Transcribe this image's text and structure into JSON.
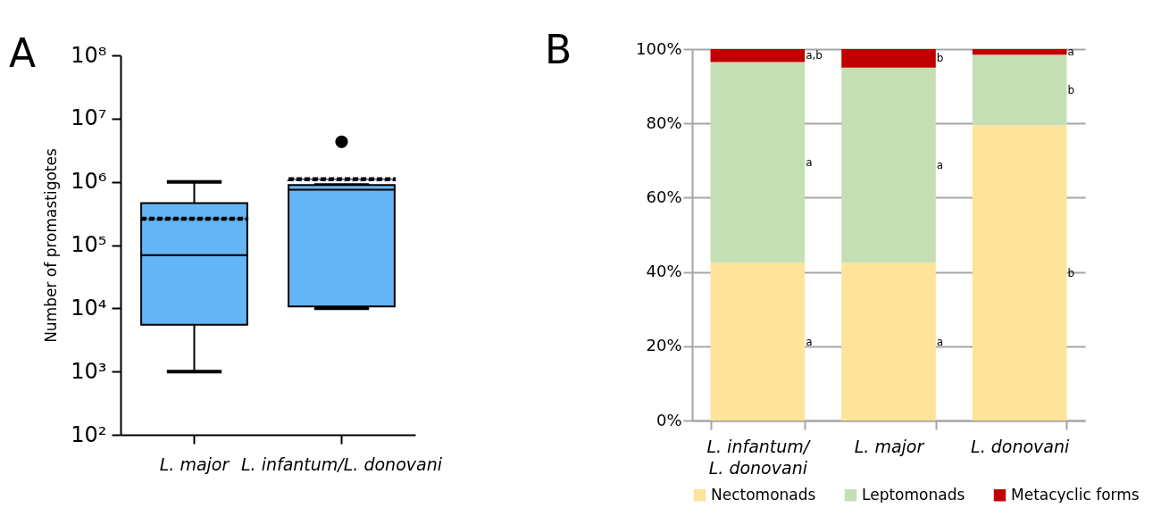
{
  "chart_data": [
    {
      "type": "box",
      "title": "A",
      "ylabel": "Number of promastigotes",
      "categories": [
        "L. major",
        "L. infantum/L. donovani"
      ],
      "color": "#64b5f5",
      "log": true,
      "ylim": [
        100,
        100000000
      ],
      "yticks": [
        {
          "value": 100,
          "label": "10²"
        },
        {
          "value": 1000,
          "label": "10³"
        },
        {
          "value": 10000,
          "label": "10⁴"
        },
        {
          "value": 100000,
          "label": "10⁵"
        },
        {
          "value": 1000000,
          "label": "10⁶"
        },
        {
          "value": 10000000,
          "label": "10⁷"
        },
        {
          "value": 100000000,
          "label": "10⁸"
        }
      ],
      "boxes": [
        {
          "low": 1000,
          "q1": 5500,
          "median": 69000,
          "q3": 460000,
          "high": 1000000,
          "mean": 260000
        },
        {
          "low": 10000,
          "q1": 10700,
          "median": 750000,
          "q3": 890000,
          "high": 890000,
          "mean": 1100000,
          "outliers": [
            4300000
          ]
        }
      ]
    },
    {
      "type": "bar",
      "title": "B",
      "categories": [
        "L. infantum/L. donovani",
        "L. major",
        "L. donovani"
      ],
      "stacked": true,
      "ylim": [
        0,
        100
      ],
      "yticks": [
        {
          "value": 0,
          "label": "0%"
        },
        {
          "value": 20,
          "label": "20%"
        },
        {
          "value": 40,
          "label": "40%"
        },
        {
          "value": 60,
          "label": "60%"
        },
        {
          "value": 80,
          "label": "80%"
        },
        {
          "value": 100,
          "label": "100%"
        }
      ],
      "grid": "y",
      "legend": "bottom",
      "series": [
        {
          "name": "Nectomonads",
          "color": "#fde49a",
          "values": [
            42.5,
            42.5,
            79.5
          ],
          "value_labels": [
            "a",
            "a",
            "b"
          ]
        },
        {
          "name": "Leptomonads",
          "color": "#c5dfb4",
          "values": [
            54,
            52.5,
            19
          ],
          "value_labels": [
            "a",
            "a",
            "b"
          ]
        },
        {
          "name": "Metacyclic forms",
          "color": "#c00000",
          "values": [
            3.5,
            5,
            1.5
          ],
          "value_labels": [
            "a,b",
            "b",
            "a"
          ]
        }
      ]
    }
  ]
}
